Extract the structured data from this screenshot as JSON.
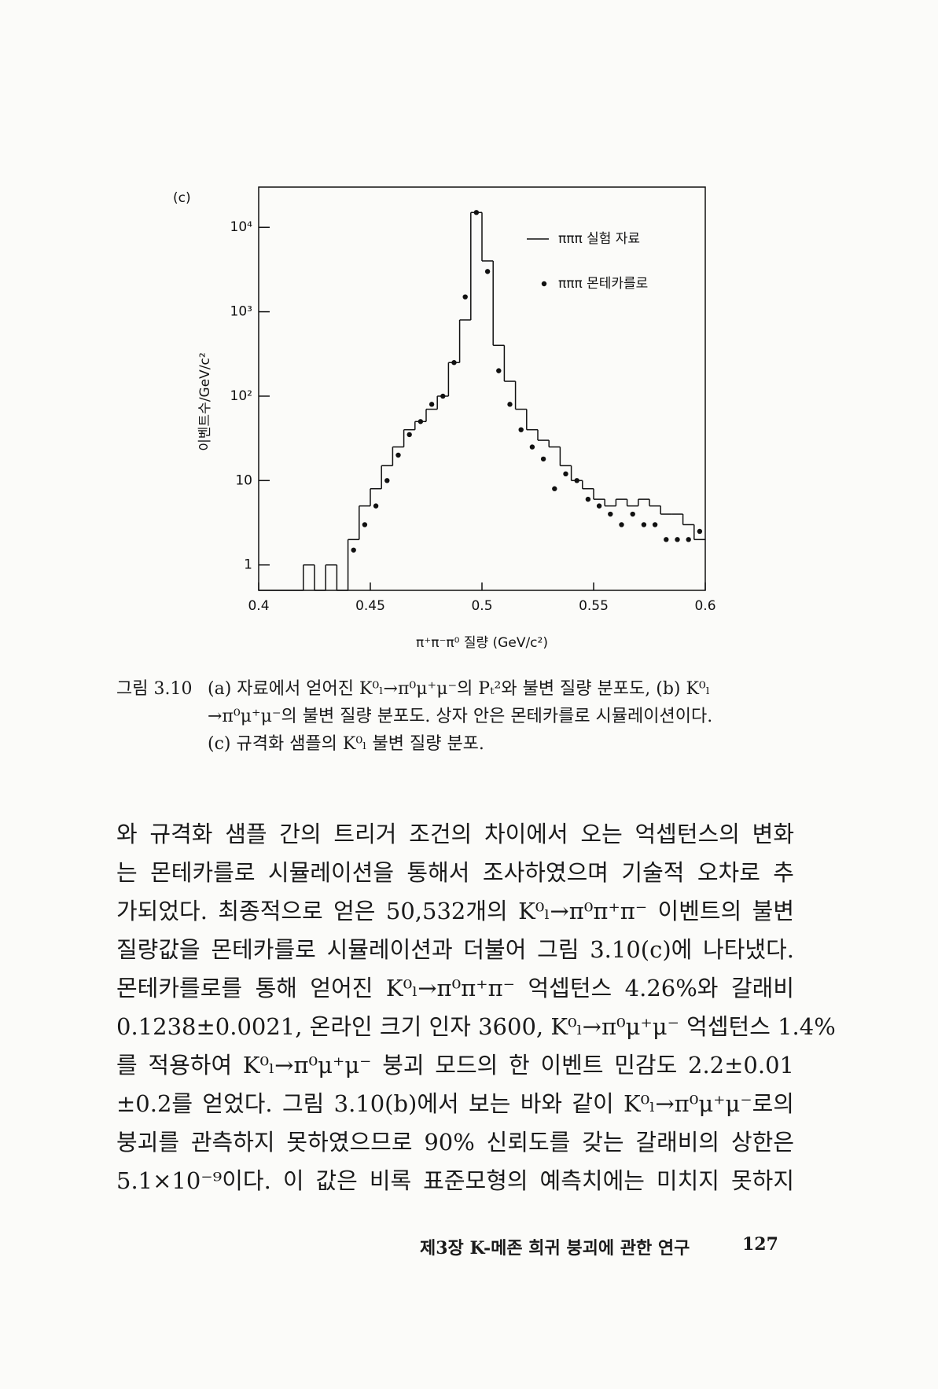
{
  "chart_data": {
    "type": "histogram",
    "panel_label": "(c)",
    "x_label": "π⁺π⁻π⁰ 질량 (GeV/c²)",
    "y_label": "이벤트수/GeV/c²",
    "log_y": true,
    "color": "#111111",
    "legend": "upper right",
    "bins": [
      0.4,
      0.405,
      0.41,
      0.415,
      0.42,
      0.425,
      0.43,
      0.435,
      0.44,
      0.445,
      0.45,
      0.455,
      0.46,
      0.465,
      0.47,
      0.475,
      0.48,
      0.485,
      0.49,
      0.495,
      0.5,
      0.505,
      0.51,
      0.515,
      0.52,
      0.525,
      0.53,
      0.535,
      0.54,
      0.545,
      0.55,
      0.555,
      0.56,
      0.565,
      0.57,
      0.575,
      0.58,
      0.585,
      0.59,
      0.595,
      0.6
    ],
    "series": [
      {
        "name": "πππ 실험 자료",
        "type": "histogram",
        "values": [
          0,
          0,
          0,
          0,
          1,
          0,
          1,
          0,
          2,
          5,
          8,
          15,
          25,
          40,
          50,
          70,
          100,
          250,
          800,
          15000,
          4000,
          400,
          150,
          70,
          40,
          30,
          25,
          15,
          10,
          8,
          6,
          5,
          6,
          5,
          6,
          5,
          4,
          4,
          3,
          2
        ]
      },
      {
        "name": "πππ 몬테카를로",
        "type": "scatter",
        "x": [
          0.4425,
          0.4475,
          0.4525,
          0.4575,
          0.4625,
          0.4675,
          0.4725,
          0.4775,
          0.4825,
          0.4875,
          0.4925,
          0.4975,
          0.5025,
          0.5075,
          0.5125,
          0.5175,
          0.5225,
          0.5275,
          0.5325,
          0.5375,
          0.5425,
          0.5475,
          0.5525,
          0.5575,
          0.5625,
          0.5675,
          0.5725,
          0.5775,
          0.5825,
          0.5875,
          0.5925,
          0.5975
        ],
        "values": [
          1.5,
          3,
          5,
          10,
          20,
          35,
          50,
          80,
          100,
          250,
          1500,
          15000,
          3000,
          200,
          80,
          40,
          25,
          18,
          8,
          12,
          10,
          6,
          5,
          4,
          3,
          4,
          3,
          3,
          2,
          2,
          2,
          2.5
        ]
      }
    ],
    "xlim": [
      0.4,
      0.6
    ],
    "xticks": [
      0.4,
      0.45,
      0.5,
      0.55,
      0.6
    ],
    "ylim": [
      0.5,
      30000
    ],
    "yticks": [
      1,
      10,
      {
        "value": 100,
        "label": "10²"
      },
      {
        "value": 1000,
        "label": "10³"
      },
      {
        "value": 10000,
        "label": "10⁴"
      }
    ]
  },
  "caption": {
    "label": "그림 3.10",
    "lines": [
      "(a) 자료에서 얻어진 K⁰ₗ→π⁰μ⁺μ⁻의 Pₜ²와 불변 질량 분포도, (b) K⁰ₗ",
      "→π⁰μ⁺μ⁻의 불변 질량 분포도. 상자 안은 몬테카를로 시뮬레이션이다.",
      "(c) 규격화 샘플의 K⁰ₗ 불변 질량 분포."
    ]
  },
  "body": [
    "와 규격화 샘플 간의 트리거 조건의 차이에서 오는 억셉턴스의 변화",
    "는 몬테카를로 시뮬레이션을 통해서 조사하였으며 기술적 오차로 추",
    "가되었다. 최종적으로 얻은 50,532개의 K⁰ₗ→π⁰π⁺π⁻ 이벤트의 불변",
    "질량값을 몬테카를로 시뮬레이션과 더불어 그림 3.10(c)에 나타냈다.",
    "몬테카를로를 통해 얻어진 K⁰ₗ→π⁰π⁺π⁻ 억셉턴스 4.26%와 갈래비",
    "0.1238±0.0021, 온라인 크기 인자 3600, K⁰ₗ→π⁰μ⁺μ⁻ 억셉턴스 1.4%",
    "를 적용하여 K⁰ₗ→π⁰μ⁺μ⁻ 붕괴 모드의 한 이벤트 민감도 2.2±0.01",
    "±0.2를 얻었다. 그림 3.10(b)에서 보는 바와 같이 K⁰ₗ→π⁰μ⁺μ⁻로의",
    "붕괴를 관측하지 못하였으므로 90% 신뢰도를 갖는 갈래비의 상한은",
    "5.1×10⁻⁹이다. 이 값은 비록 표준모형의 예측치에는 미치지 못하지"
  ],
  "footer": {
    "chapter": "제3장 K-메존 희귀 붕괴에 관한 연구",
    "page": "127"
  }
}
